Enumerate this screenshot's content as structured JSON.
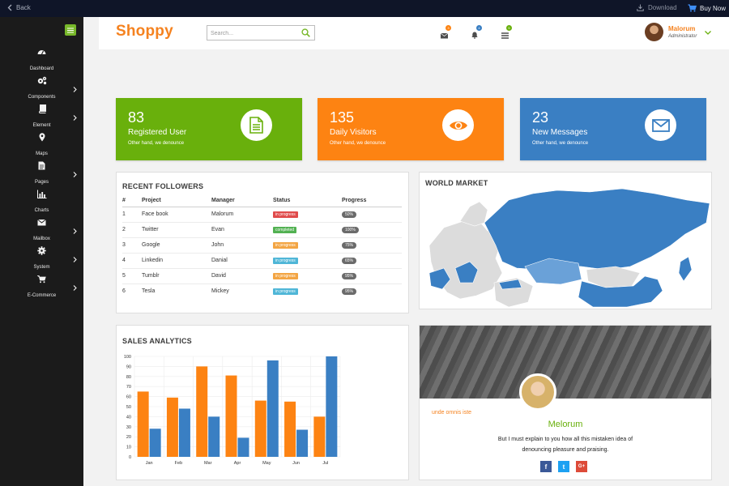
{
  "topbar": {
    "back_label": "Back",
    "download_label": "Download",
    "buy_label": "Buy Now"
  },
  "sidebar": {
    "items": [
      {
        "label": "Dashboard",
        "icon": "dashboard-icon",
        "has_submenu": false
      },
      {
        "label": "Components",
        "icon": "gears-icon",
        "has_submenu": true
      },
      {
        "label": "Element",
        "icon": "book-icon",
        "has_submenu": true
      },
      {
        "label": "Maps",
        "icon": "map-marker-icon",
        "has_submenu": false
      },
      {
        "label": "Pages",
        "icon": "file-icon",
        "has_submenu": true
      },
      {
        "label": "Charts",
        "icon": "bar-chart-icon",
        "has_submenu": false
      },
      {
        "label": "Mailbox",
        "icon": "envelope-icon",
        "has_submenu": true
      },
      {
        "label": "System",
        "icon": "gear-icon",
        "has_submenu": true
      },
      {
        "label": "E-Commerce",
        "icon": "cart-icon",
        "has_submenu": true
      }
    ]
  },
  "header": {
    "brand": "Shoppy",
    "search_placeholder": "Search...",
    "badges": {
      "mail": "3",
      "bell": "4",
      "tasks": "5"
    },
    "user": {
      "name": "Malorum",
      "role": "Administrator"
    }
  },
  "stats": [
    {
      "value": "83",
      "title": "Registered User",
      "subtitle": "Other hand, we denounce",
      "color": "#69b00c",
      "icon": "file-text-icon"
    },
    {
      "value": "135",
      "title": "Daily Visitors",
      "subtitle": "Other hand, we denounce",
      "color": "#fd8312",
      "icon": "eye-icon"
    },
    {
      "value": "23",
      "title": "New Messages",
      "subtitle": "Other hand, we denounce",
      "color": "#3a7fc3",
      "icon": "envelope-icon"
    }
  ],
  "followers": {
    "title": "RECENT FOLLOWERS",
    "columns": [
      "#",
      "Project",
      "Manager",
      "Status",
      "Progress"
    ],
    "rows": [
      {
        "num": "1",
        "project": "Face book",
        "manager": "Malorum",
        "status": "in progress",
        "status_color": "#e04b4b",
        "progress": "50%"
      },
      {
        "num": "2",
        "project": "Twitter",
        "manager": "Evan",
        "status": "completed",
        "status_color": "#52b152",
        "progress": "100%"
      },
      {
        "num": "3",
        "project": "Google",
        "manager": "John",
        "status": "in progress",
        "status_color": "#f3a543",
        "progress": "75%"
      },
      {
        "num": "4",
        "project": "Linkedin",
        "manager": "Danial",
        "status": "in progress",
        "status_color": "#4fb6d7",
        "progress": "65%"
      },
      {
        "num": "5",
        "project": "Tumblr",
        "manager": "David",
        "status": "in progress",
        "status_color": "#f3a543",
        "progress": "95%"
      },
      {
        "num": "6",
        "project": "Tesla",
        "manager": "Mickey",
        "status": "in progress",
        "status_color": "#4fb6d7",
        "progress": "95%"
      }
    ]
  },
  "world_market": {
    "title": "WORLD MARKET"
  },
  "chart_data": {
    "type": "bar",
    "title": "SALES ANALYTICS",
    "categories": [
      "Jan",
      "Feb",
      "Mar",
      "Apr",
      "May",
      "Jun",
      "Jul"
    ],
    "series": [
      {
        "values": [
          65,
          59,
          90,
          81,
          56,
          55,
          40
        ],
        "color": "#fd8312"
      },
      {
        "values": [
          28,
          48,
          40,
          19,
          96,
          27,
          100
        ],
        "color": "#3a7fc3"
      }
    ],
    "ylim": [
      0,
      100
    ],
    "yticks": [
      0,
      10,
      20,
      30,
      40,
      50,
      60,
      70,
      80,
      90,
      100
    ],
    "grid": true
  },
  "profile": {
    "caption": "unde omnis iste",
    "name": "Melorum",
    "text_line1": "But I must explain to you how all this mistaken idea of",
    "text_line2": "denouncing pleasure and praising.",
    "social": [
      {
        "label": "f",
        "color": "#3b5998",
        "icon": "facebook-icon"
      },
      {
        "label": "t",
        "color": "#1da1f2",
        "icon": "twitter-icon"
      },
      {
        "label": "G+",
        "color": "#dd4b39",
        "icon": "google-plus-icon"
      }
    ]
  }
}
